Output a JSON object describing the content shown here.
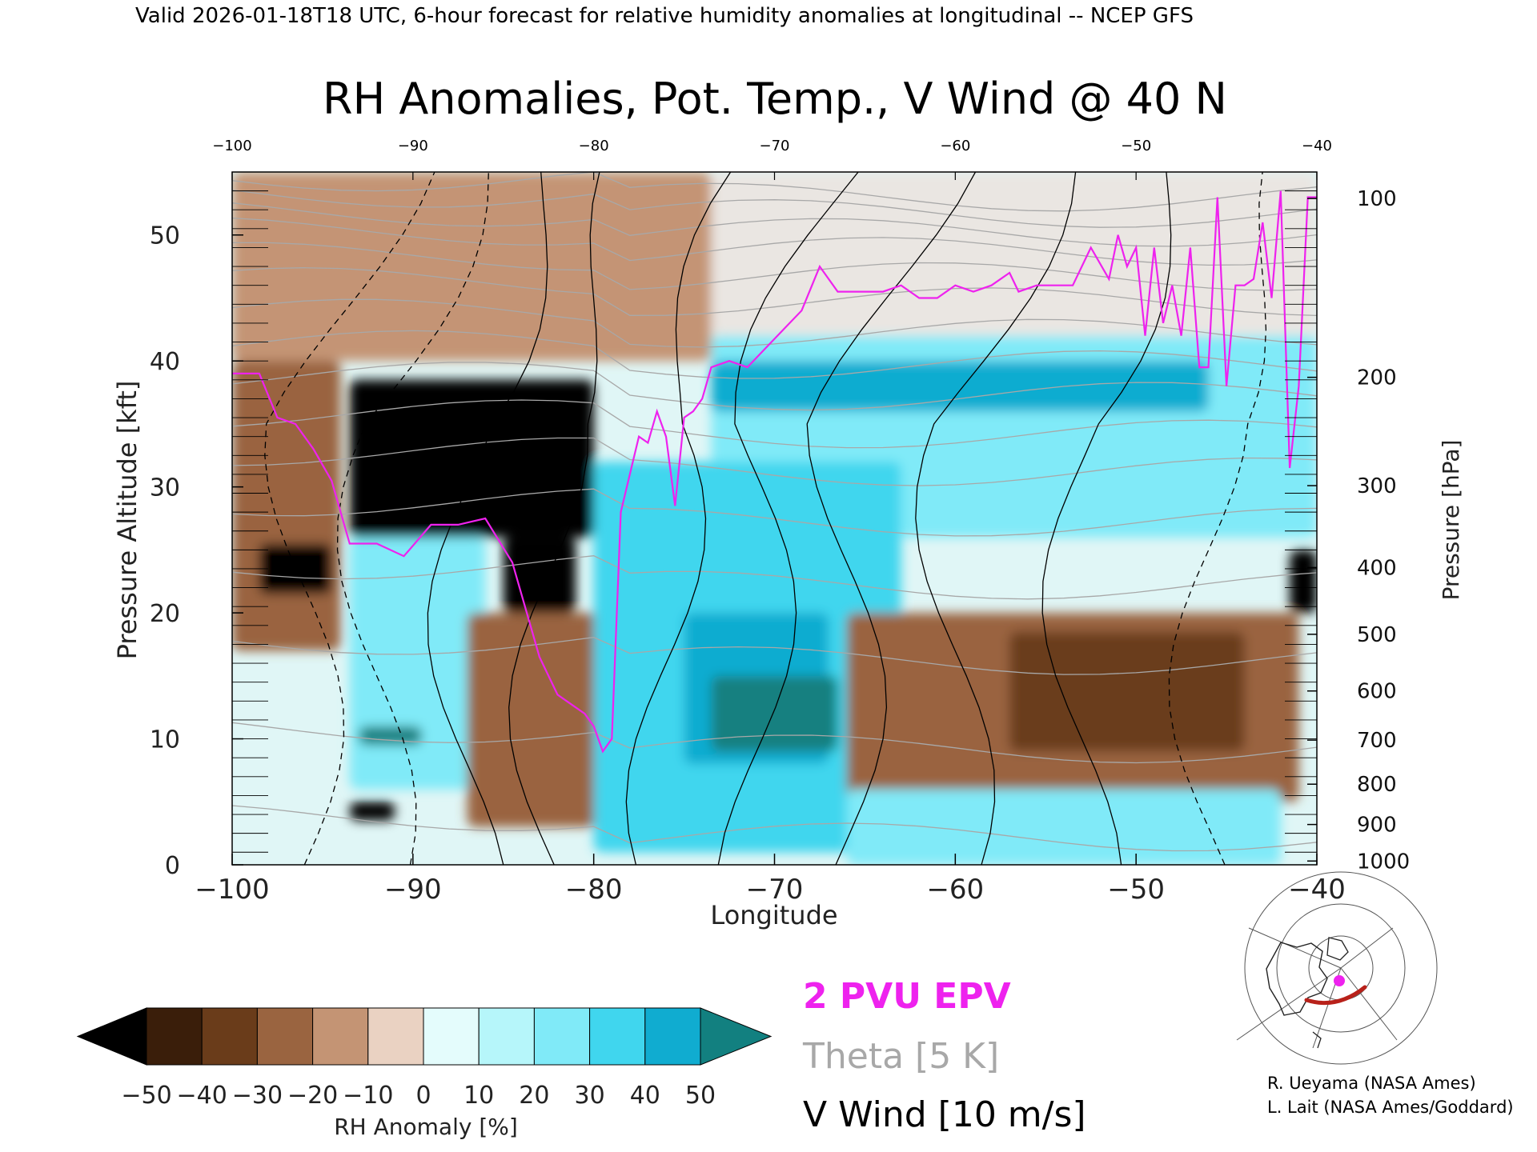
{
  "header": "Valid 2026-01-18T18 UTC, 6-hour forecast for relative humidity anomalies at longitudinal -- NCEP GFS",
  "credits": [
    "R. Ueyama (NASA Ames)",
    "L. Lait (NASA Ames/Goddard)"
  ],
  "legend_text": {
    "epv": "2 PVU EPV",
    "theta": "Theta [5 K]",
    "vwind": "V Wind [10 m/s]"
  },
  "colors": {
    "epv": "#ee22ee",
    "theta": "#a8a8a8",
    "vwind": "#000000",
    "upper_bg": "#eae6e2",
    "rh_scale": [
      "#000000",
      "#3a1e0a",
      "#6a3c1a",
      "#9a6440",
      "#c49474",
      "#ead2c2",
      "#e4fcfc",
      "#b6f6fa",
      "#80eaf8",
      "#40d6ee",
      "#10acd0",
      "#04789a",
      "#128080"
    ]
  },
  "chart_data": {
    "type": "heatmap",
    "title": "RH Anomalies, Pot. Temp., V Wind @ 40 N",
    "xlabel": "Longitude",
    "ylabel": "Pressure Altitude [kft]",
    "y2label": "Pressure [hPa]",
    "xlim": [
      -100,
      -40
    ],
    "ylim": [
      0,
      55
    ],
    "x_ticks": [
      -100,
      -90,
      -80,
      -70,
      -60,
      -50,
      -40
    ],
    "x_tick_labels": [
      "−100",
      "−90",
      "−80",
      "−70",
      "−60",
      "−50",
      "−40"
    ],
    "top_tick_labels": [
      "−100",
      "−90",
      "−80",
      "−70",
      "−60",
      "−50",
      "−40"
    ],
    "y_ticks": [
      0,
      10,
      20,
      30,
      40,
      50
    ],
    "pressure_ticks": [
      {
        "hPa": "100",
        "kft": 52.9
      },
      {
        "hPa": "200",
        "kft": 38.7
      },
      {
        "hPa": "300",
        "kft": 30.1
      },
      {
        "hPa": "400",
        "kft": 23.6
      },
      {
        "hPa": "500",
        "kft": 18.3
      },
      {
        "hPa": "600",
        "kft": 13.8
      },
      {
        "hPa": "700",
        "kft": 9.9
      },
      {
        "hPa": "800",
        "kft": 6.4
      },
      {
        "hPa": "900",
        "kft": 3.2
      },
      {
        "hPa": "1000",
        "kft": 0.3
      }
    ],
    "colorbar": {
      "label": "RH Anomaly [%]",
      "levels": [
        -50,
        -40,
        -30,
        -20,
        -10,
        0,
        10,
        20,
        30,
        40,
        50
      ],
      "level_labels": [
        "−50",
        "−40",
        "−30",
        "−20",
        "−10",
        "0",
        "10",
        "20",
        "30",
        "40",
        "50"
      ],
      "extend": "both"
    },
    "rh_regions": [
      {
        "name": "upper-tan-west",
        "lon": [
          -100,
          -73.5
        ],
        "alt": [
          40,
          55
        ],
        "rh": -15
      },
      {
        "name": "upper-tan-east",
        "lon": [
          -73.5,
          -40
        ],
        "alt": [
          42,
          55
        ],
        "rh": -2
      },
      {
        "name": "upper-cyan-east",
        "lon": [
          -73.5,
          -40
        ],
        "alt": [
          26,
          42
        ],
        "rh": 20
      },
      {
        "name": "cyan-band-200hPa",
        "lon": [
          -73.5,
          -46
        ],
        "alt": [
          36,
          40
        ],
        "rh": 40
      },
      {
        "name": "dry-core",
        "lon": [
          -93.5,
          -80
        ],
        "alt": [
          26,
          38.5
        ],
        "rh": -60
      },
      {
        "name": "dry-stem",
        "lon": [
          -85,
          -81
        ],
        "alt": [
          20,
          26
        ],
        "rh": -55
      },
      {
        "name": "brown-west-column",
        "lon": [
          -100,
          -94
        ],
        "alt": [
          17,
          40
        ],
        "rh": -25
      },
      {
        "name": "dry-blob-west",
        "lon": [
          -98.5,
          -94.5
        ],
        "alt": [
          21.5,
          25.5
        ],
        "rh": -55
      },
      {
        "name": "cyan-lower-west",
        "lon": [
          -93.5,
          -86
        ],
        "alt": [
          6,
          26
        ],
        "rh": 25
      },
      {
        "name": "teal-patch-west",
        "lon": [
          -93,
          -89.5
        ],
        "alt": [
          9.5,
          11
        ],
        "rh": 55
      },
      {
        "name": "brown-mid",
        "lon": [
          -87,
          -79
        ],
        "alt": [
          3,
          20
        ],
        "rh": -25
      },
      {
        "name": "cyan-middle",
        "lon": [
          -80,
          -63
        ],
        "alt": [
          1,
          32
        ],
        "rh": 30
      },
      {
        "name": "deep-cyan-middle",
        "lon": [
          -75,
          -67
        ],
        "alt": [
          8,
          20
        ],
        "rh": 45
      },
      {
        "name": "teal-patch-middle",
        "lon": [
          -73.5,
          -66.5
        ],
        "alt": [
          9,
          15
        ],
        "rh": 55
      },
      {
        "name": "brown-east-low",
        "lon": [
          -66,
          -41
        ],
        "alt": [
          5,
          20
        ],
        "rh": -25
      },
      {
        "name": "deep-brown-east",
        "lon": [
          -57,
          -44
        ],
        "alt": [
          9,
          18.5
        ],
        "rh": -40
      },
      {
        "name": "cyan-east-low",
        "lon": [
          -66,
          -42
        ],
        "alt": [
          0,
          6
        ],
        "rh": 20
      },
      {
        "name": "dry-blob-east",
        "lon": [
          -41.5,
          -40
        ],
        "alt": [
          20,
          25
        ],
        "rh": -55
      },
      {
        "name": "dry-blob-surface",
        "lon": [
          -93.5,
          -91
        ],
        "alt": [
          3.5,
          5
        ],
        "rh": -60
      }
    ],
    "epv_2pvu": {
      "lon": [
        -100,
        -98.5,
        -97.5,
        -96.5,
        -95.5,
        -94.5,
        -93.5,
        -92,
        -90.5,
        -89,
        -87.5,
        -86,
        -84.5,
        -83,
        -82,
        -81.5,
        -80.5,
        -80,
        -79.5,
        -79,
        -78.5,
        -78,
        -77.5,
        -77,
        -76.5,
        -76,
        -75.5,
        -75,
        -74.5,
        -74,
        -73.5,
        -72.5,
        -71.5,
        -70.5,
        -69.5,
        -68.5,
        -67.5,
        -66.5,
        -65.5,
        -64,
        -63,
        -62,
        -61,
        -60,
        -59,
        -58,
        -57,
        -56.5,
        -55.5,
        -54.5,
        -53.5,
        -52.5,
        -51.5,
        -51,
        -50.5,
        -50,
        -49.5,
        -49,
        -48.5,
        -48,
        -47.5,
        -47,
        -46.5,
        -46,
        -45.5,
        -45,
        -44.5,
        -44,
        -43.5,
        -43,
        -42.5,
        -42,
        -41.5,
        -41,
        -40.5,
        -40
      ],
      "alt": [
        39,
        39,
        35.5,
        35,
        33,
        30.5,
        25.5,
        25.5,
        24.5,
        27,
        27,
        27.5,
        24,
        16.5,
        13.5,
        13,
        12,
        11,
        9,
        10,
        28,
        31,
        34,
        33.5,
        36,
        34,
        28.5,
        35.5,
        36,
        37,
        39.5,
        40,
        39.5,
        41,
        42.5,
        44,
        47.5,
        45.5,
        45.5,
        45.5,
        46,
        45,
        45,
        46,
        45.5,
        46,
        47,
        45.5,
        46,
        46,
        46,
        49,
        46.5,
        50,
        47.5,
        49,
        42,
        49,
        43,
        46,
        42,
        49,
        39.5,
        39.5,
        53,
        38,
        46,
        46,
        46.5,
        51,
        45,
        53.5,
        31.5,
        38,
        53,
        53
      ]
    },
    "theta_levels_K": [
      300,
      310,
      320,
      330,
      340,
      350,
      360,
      370,
      380,
      390,
      400,
      410,
      420
    ],
    "vwind_contour_labels": [
      -10,
      0,
      10,
      20,
      30,
      40,
      50
    ]
  }
}
